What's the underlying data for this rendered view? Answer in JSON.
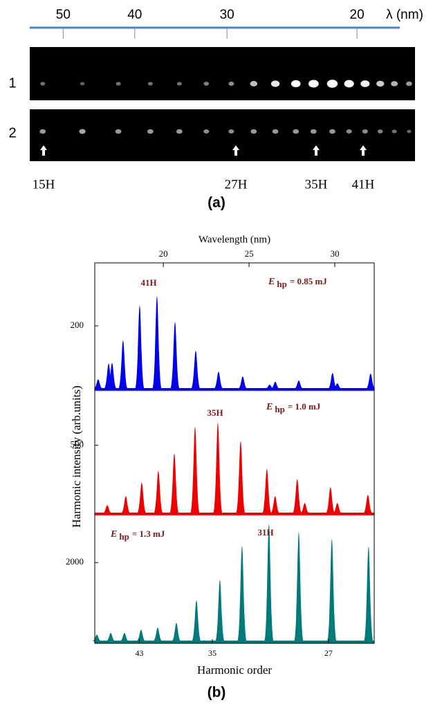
{
  "chart_data": [
    {
      "type": "spots",
      "caption": "(a)",
      "xlabel": "λ (nm)",
      "xscale": "log",
      "xlim": [
        55.5,
        17.5
      ],
      "xticks": [
        50,
        40,
        30,
        20
      ],
      "wavelengths": [
        53.3,
        47.1,
        42.1,
        38.1,
        34.8,
        32.0,
        29.6,
        27.6,
        25.8,
        24.2,
        22.9,
        21.6,
        20.5,
        19.5,
        18.6,
        17.8,
        17.0
      ],
      "rows": [
        {
          "label": "1",
          "intensities": [
            0.25,
            0.2,
            0.25,
            0.25,
            0.25,
            0.3,
            0.35,
            0.55,
            0.7,
            0.8,
            0.9,
            0.95,
            0.85,
            0.75,
            0.6,
            0.5,
            0.4
          ]
        },
        {
          "label": "2",
          "intensities": [
            0.4,
            0.45,
            0.4,
            0.4,
            0.4,
            0.35,
            0.35,
            0.4,
            0.4,
            0.4,
            0.4,
            0.4,
            0.35,
            0.35,
            0.3,
            0.25,
            0.2
          ]
        }
      ],
      "arrows": [
        "15H",
        "27H",
        "35H",
        "41H"
      ]
    },
    {
      "type": "peaks",
      "caption": "(b)",
      "xlabel": "Harmonic order",
      "x2label": "Wavelength (nm)",
      "ylabel": "Harmonic intensity (arb.units)",
      "xlim": [
        16.0,
        32.3
      ],
      "x2ticks": [
        20,
        25,
        30
      ],
      "xticks": [
        {
          "value": 18.6,
          "label": "43"
        },
        {
          "value": 22.86,
          "label": "35"
        },
        {
          "value": 29.63,
          "label": "27"
        }
      ],
      "panels": [
        {
          "color": "#0000ee",
          "ylim": [
            0,
            400
          ],
          "yticks": [
            200
          ],
          "x": [
            16.2,
            16.81,
            17.01,
            17.65,
            18.62,
            19.63,
            20.68,
            21.89,
            23.22,
            24.63,
            26.2,
            26.53,
            27.9,
            29.87,
            30.15,
            32.09
          ],
          "values": [
            30,
            80,
            82,
            153,
            264,
            294,
            212,
            121,
            54,
            39,
            13,
            22,
            26,
            50,
            17,
            48
          ],
          "peak_label": "41H",
          "energy": {
            "symbol": "E",
            "subscript": "hp",
            "text": "= 0.85 mJ"
          }
        },
        {
          "color": "#ee0000",
          "ylim": [
            0,
            900
          ],
          "yticks": [
            500
          ],
          "x": [
            16.73,
            17.81,
            18.74,
            19.71,
            20.64,
            21.85,
            23.18,
            24.51,
            26.04,
            26.52,
            27.81,
            28.25,
            29.75,
            30.15,
            31.93
          ],
          "values": [
            60,
            125,
            225,
            310,
            440,
            635,
            665,
            530,
            325,
            125,
            250,
            75,
            190,
            75,
            135
          ],
          "peak_label": "35H",
          "energy": {
            "symbol": "E",
            "subscript": "hp",
            "text": "= 1.0 mJ"
          }
        },
        {
          "color": "#007a7a",
          "ylim": [
            0,
            3200
          ],
          "yticks": [
            2000
          ],
          "x": [
            16.12,
            16.93,
            17.73,
            18.7,
            19.67,
            20.76,
            21.93,
            23.3,
            24.59,
            26.16,
            27.9,
            29.83,
            31.97
          ],
          "values": [
            170,
            210,
            210,
            295,
            345,
            465,
            1040,
            1555,
            2420,
            2975,
            2770,
            2595,
            2405
          ],
          "peak_label": "31H",
          "energy": {
            "symbol": "E",
            "subscript": "hp",
            "text": "= 1.3 mJ"
          }
        }
      ]
    }
  ]
}
